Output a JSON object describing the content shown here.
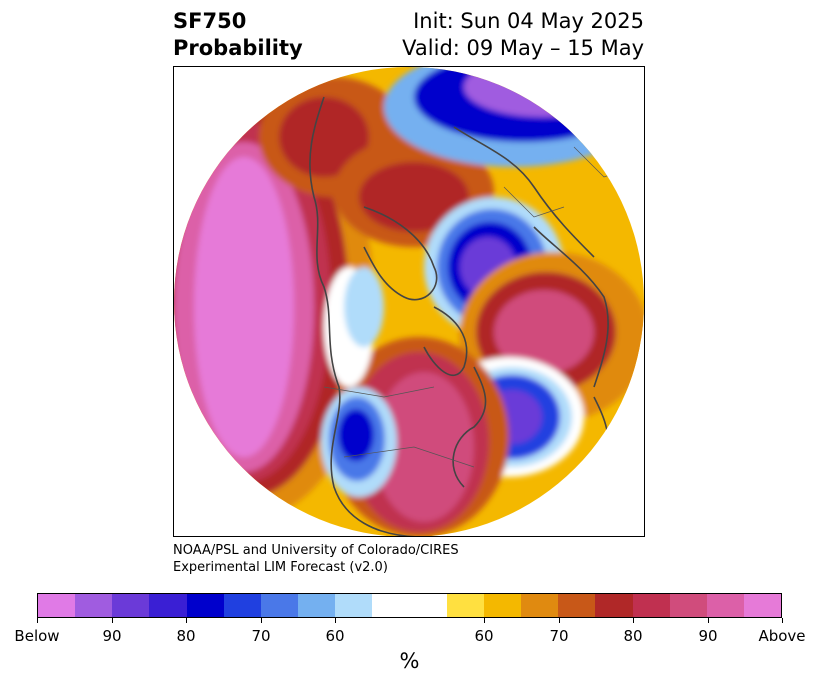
{
  "title": {
    "left_line1": "SF750",
    "left_line2": "Probability",
    "right_line1": "Init: Sun 04 May 2025",
    "right_line2": "Valid: 09 May – 15 May"
  },
  "credit": {
    "line1": "NOAA/PSL and University of Colorado/CIRES",
    "line2": "Experimental LIM Forecast (v2.0)"
  },
  "colorbar": {
    "colors": [
      "#e07ae6",
      "#a05ce0",
      "#6b3ad8",
      "#3a1fd4",
      "#0000cc",
      "#2040e0",
      "#4a78e8",
      "#74b0f0",
      "#b0dcfa",
      "#ffffff",
      "#ffffff",
      "#ffe040",
      "#f4b800",
      "#e08a10",
      "#c85818",
      "#b02828",
      "#c03050",
      "#d04c7c",
      "#dc60a8",
      "#e67ad8"
    ],
    "tick_labels": [
      "Below",
      "90",
      "80",
      "70",
      "60",
      "60",
      "70",
      "80",
      "90",
      "Above"
    ],
    "units": "%"
  },
  "map": {
    "projection": "north-polar-stereographic",
    "anomalies": [
      {
        "region": "North Pacific",
        "sign": "above",
        "level": "Above"
      },
      {
        "region": "Western Canada / Alaska",
        "sign": "above",
        "level": "80"
      },
      {
        "region": "Northern Eurasia",
        "sign": "above",
        "level": "70"
      },
      {
        "region": "Siberia / Arctic",
        "sign": "below",
        "level": "90"
      },
      {
        "region": "North Atlantic",
        "sign": "below",
        "level": "90"
      },
      {
        "region": "Central United States",
        "sign": "above",
        "level": "90"
      },
      {
        "region": "Southwestern United States",
        "sign": "below",
        "level": "80"
      },
      {
        "region": "Northern Europe",
        "sign": "above",
        "level": "90"
      }
    ]
  }
}
